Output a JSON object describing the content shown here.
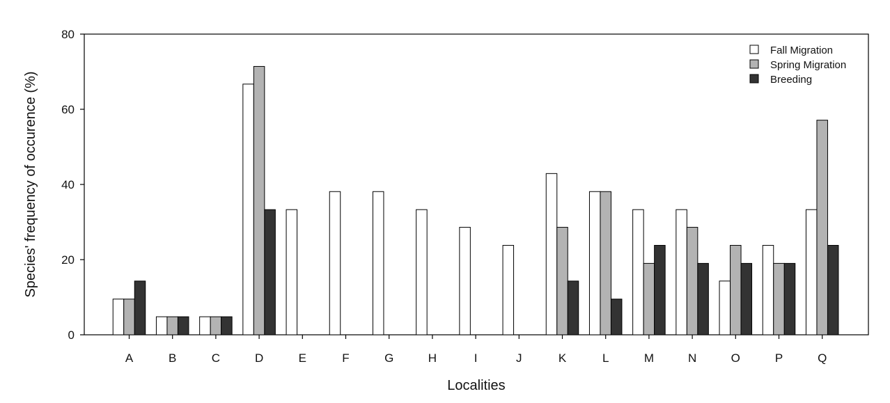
{
  "chart_data": {
    "type": "bar",
    "title": "",
    "xlabel": "Localities",
    "ylabel": "Species' frequency of occurence (%)",
    "ylim": [
      0,
      80
    ],
    "yticks": [
      0,
      20,
      40,
      60,
      80
    ],
    "grid": false,
    "legend_position": "top-right",
    "categories": [
      "A",
      "B",
      "C",
      "D",
      "E",
      "F",
      "G",
      "H",
      "I",
      "J",
      "K",
      "L",
      "M",
      "N",
      "O",
      "P",
      "Q"
    ],
    "series": [
      {
        "name": "Fall Migration",
        "color": "#ffffff",
        "values": [
          9.5,
          4.8,
          4.8,
          66.7,
          33.3,
          38.1,
          38.1,
          33.3,
          28.6,
          23.8,
          42.9,
          38.1,
          33.3,
          33.3,
          14.3,
          23.8,
          33.3
        ]
      },
      {
        "name": "Spring Migration",
        "color": "#b3b3b3",
        "values": [
          9.5,
          4.8,
          4.8,
          71.4,
          0,
          0,
          0,
          0,
          0,
          0,
          28.6,
          38.1,
          19.0,
          28.6,
          23.8,
          19.0,
          57.1
        ]
      },
      {
        "name": "Breeding",
        "color": "#333333",
        "values": [
          14.3,
          4.8,
          4.8,
          33.3,
          0,
          0,
          0,
          0,
          0,
          0,
          14.3,
          9.5,
          23.8,
          19.0,
          19.0,
          19.0,
          23.8
        ]
      }
    ]
  }
}
